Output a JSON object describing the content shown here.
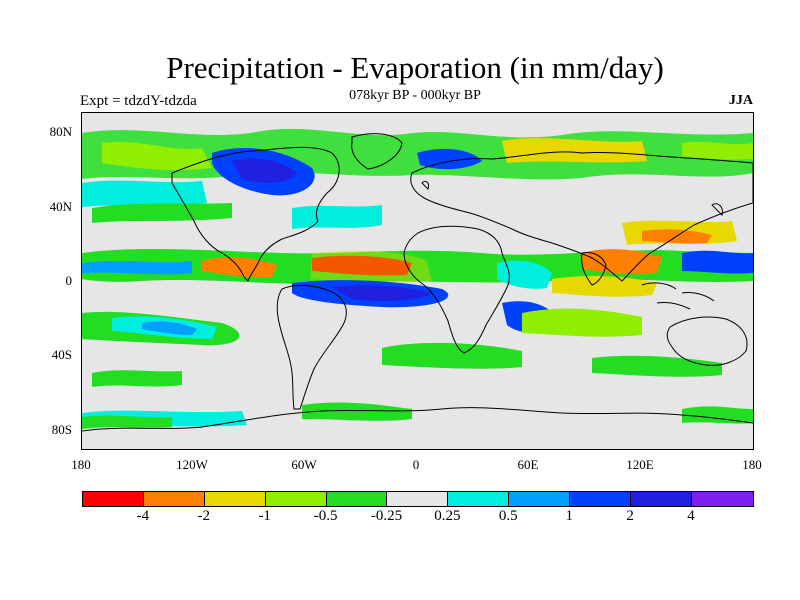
{
  "title": "Precipitation - Evaporation (in mm/day)",
  "subtitle": "078kyr BP - 000kyr BP",
  "left_label": "Expt = tdzdY-tdzda",
  "right_label": "JJA",
  "lat_labels": [
    "80N",
    "40N",
    "0",
    "40S",
    "80S"
  ],
  "lon_labels": [
    "180",
    "120W",
    "60W",
    "0",
    "60E",
    "120E",
    "180"
  ],
  "colorbar": {
    "colors": [
      "#ff0000",
      "#ff8000",
      "#e6d800",
      "#90ee00",
      "#22dd22",
      "#e6e6e6",
      "#00eedd",
      "#00a0ff",
      "#0040ff",
      "#2020e0",
      "#8020f0"
    ],
    "labels": [
      "-4",
      "-2",
      "-1",
      "-0.5",
      "-0.25",
      "0.25",
      "0.5",
      "1",
      "2",
      "4"
    ]
  },
  "map_background": "#e6e6e6"
}
